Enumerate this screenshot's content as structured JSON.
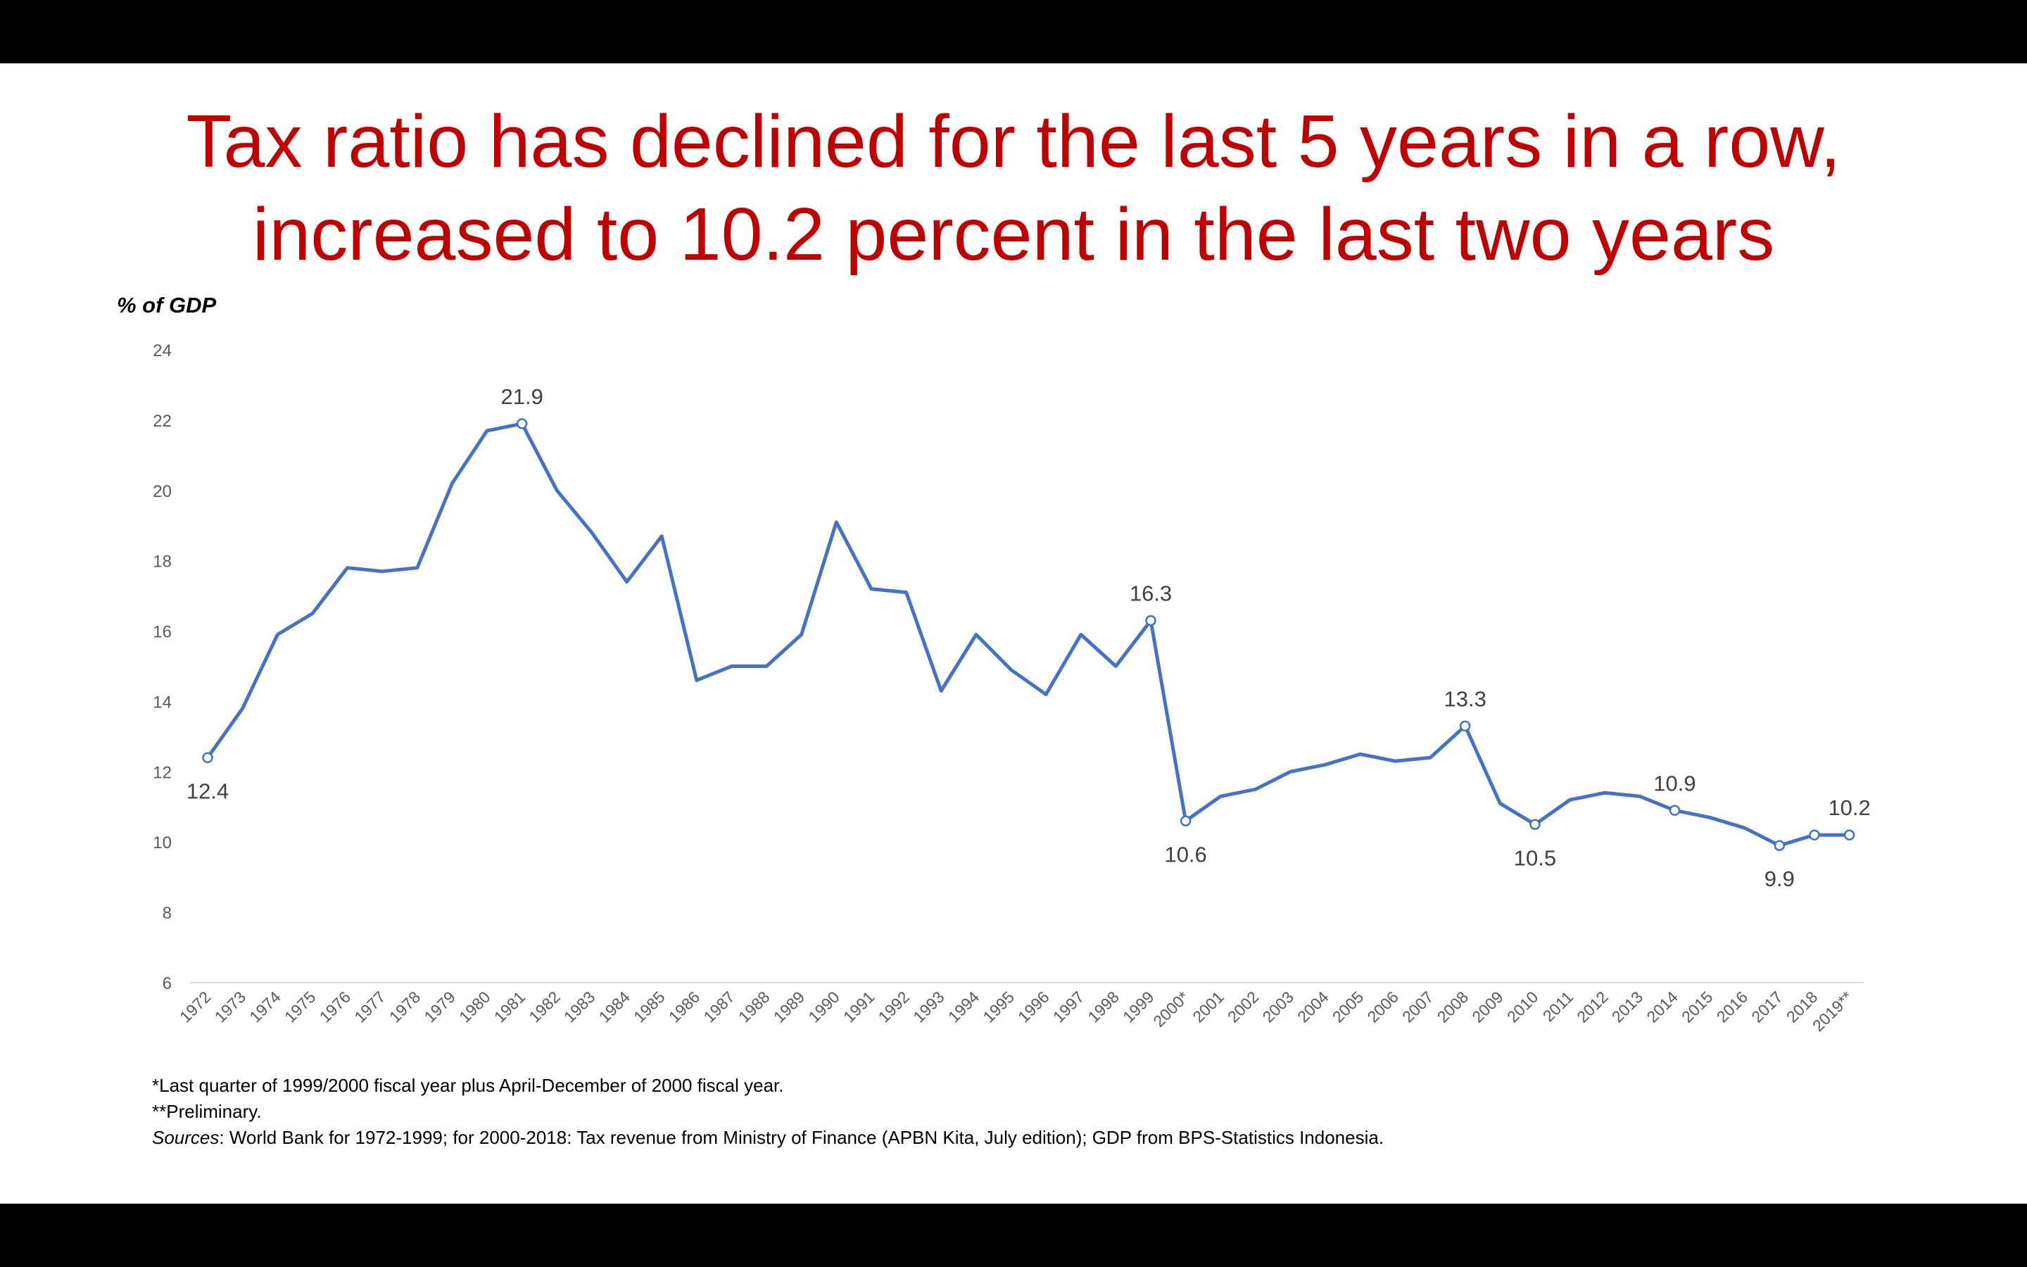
{
  "title_lines": [
    "Tax ratio has declined for the last 5 years in a row,",
    "increased to 10.2 percent in the last two years"
  ],
  "footnotes": {
    "note1": "*Last quarter of 1999/2000 fiscal year plus April-December of 2000 fiscal year.",
    "note2": "**Preliminary.",
    "sources_label": "Sources",
    "sources_text": ": World Bank for 1972-1999; for 2000-2018: Tax revenue from Ministry of Finance (APBN Kita, July edition); GDP from BPS-Statistics Indonesia."
  },
  "colors": {
    "title": "#c00000",
    "line": "#4472c4",
    "frame": "#000000"
  },
  "chart_data": {
    "type": "line",
    "ylabel": "% of GDP",
    "xlabel": "",
    "ylim": [
      6,
      24
    ],
    "yticks": [
      6,
      8,
      10,
      12,
      14,
      16,
      18,
      20,
      22,
      24
    ],
    "grid": false,
    "categories": [
      "1972",
      "1973",
      "1974",
      "1975",
      "1976",
      "1977",
      "1978",
      "1979",
      "1980",
      "1981",
      "1982",
      "1983",
      "1984",
      "1985",
      "1986",
      "1987",
      "1988",
      "1989",
      "1990",
      "1991",
      "1992",
      "1993",
      "1994",
      "1995",
      "1996",
      "1997",
      "1998",
      "1999",
      "2000*",
      "2001",
      "2002",
      "2003",
      "2004",
      "2005",
      "2006",
      "2007",
      "2008",
      "2009",
      "2010",
      "2011",
      "2012",
      "2013",
      "2014",
      "2015",
      "2016",
      "2017",
      "2018",
      "2019**"
    ],
    "series": [
      {
        "values": [
          12.4,
          13.8,
          15.9,
          16.5,
          17.8,
          17.7,
          17.8,
          20.2,
          21.7,
          21.9,
          20.0,
          18.8,
          17.4,
          18.7,
          14.6,
          15.0,
          15.0,
          15.9,
          19.1,
          17.2,
          17.1,
          14.3,
          15.9,
          14.9,
          14.2,
          15.9,
          15.0,
          16.3,
          10.6,
          11.3,
          11.5,
          12.0,
          12.2,
          12.5,
          12.3,
          12.4,
          13.3,
          11.1,
          10.5,
          11.2,
          11.4,
          11.3,
          10.9,
          10.7,
          10.4,
          9.9,
          10.2,
          10.2
        ]
      }
    ],
    "annotations": [
      {
        "category": "1972",
        "text": "12.4",
        "position": "below"
      },
      {
        "category": "1981",
        "text": "21.9",
        "position": "above"
      },
      {
        "category": "1999",
        "text": "16.3",
        "position": "above"
      },
      {
        "category": "2000*",
        "text": "10.6",
        "position": "below"
      },
      {
        "category": "2008",
        "text": "13.3",
        "position": "above"
      },
      {
        "category": "2010",
        "text": "10.5",
        "position": "below"
      },
      {
        "category": "2014",
        "text": "10.9",
        "position": "above"
      },
      {
        "category": "2017",
        "text": "9.9",
        "position": "below"
      },
      {
        "category": "2019**",
        "text": "10.2",
        "position": "above"
      }
    ],
    "markers_at": [
      "1972",
      "1981",
      "1999",
      "2000*",
      "2008",
      "2010",
      "2014",
      "2017",
      "2018",
      "2019**"
    ]
  }
}
